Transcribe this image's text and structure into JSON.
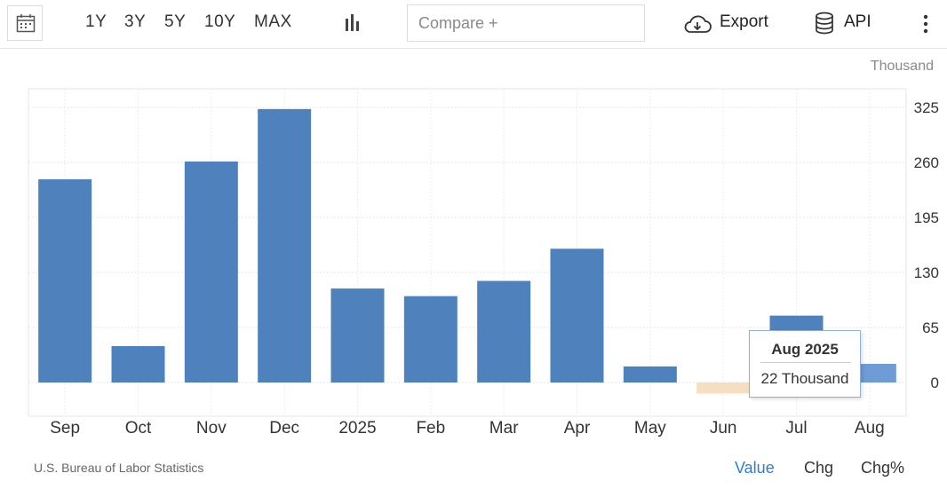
{
  "toolbar": {
    "ranges": [
      "1Y",
      "3Y",
      "5Y",
      "10Y",
      "MAX"
    ],
    "compare_placeholder": "Compare +",
    "export_label": "Export",
    "api_label": "API"
  },
  "unit_label": "Thousand",
  "source": "U.S. Bureau of Labor Statistics",
  "view_tabs": [
    "Value",
    "Chg",
    "Chg%"
  ],
  "active_view": "Value",
  "tooltip": {
    "date": "Aug 2025",
    "value": "22 Thousand"
  },
  "colors": {
    "bar_positive": "#4f81bd",
    "bar_negative": "#f5dfc0",
    "bar_highlight": "#6f9bd6",
    "active_tab": "#2a7fd4"
  },
  "chart_data": {
    "type": "bar",
    "categories": [
      "Sep",
      "Oct",
      "Nov",
      "Dec",
      "2025",
      "Feb",
      "Mar",
      "Apr",
      "May",
      "Jun",
      "Jul",
      "Aug"
    ],
    "values": [
      240,
      43,
      261,
      323,
      111,
      102,
      120,
      158,
      19,
      -13,
      79,
      22
    ],
    "ylabel": "Thousand",
    "yticks": [
      0,
      65,
      130,
      195,
      260,
      325
    ],
    "ylim": [
      -37,
      346
    ],
    "highlight_index": 11,
    "grid": true
  }
}
